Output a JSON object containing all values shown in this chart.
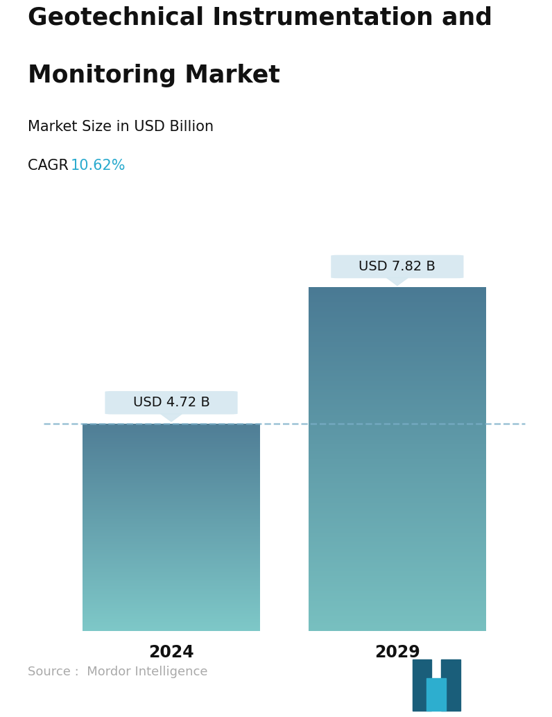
{
  "title_line1": "Geotechnical Instrumentation and",
  "title_line2": "Monitoring Market",
  "subtitle": "Market Size in USD Billion",
  "cagr_label": "CAGR  ",
  "cagr_value": "10.62%",
  "cagr_color": "#29AACE",
  "categories": [
    "2024",
    "2029"
  ],
  "values": [
    4.72,
    7.82
  ],
  "labels": [
    "USD 4.72 B",
    "USD 7.82 B"
  ],
  "bar_top_colors": [
    "#507E96",
    "#4A7A94"
  ],
  "bar_bottom_colors": [
    "#7EC8C8",
    "#78C0C0"
  ],
  "dashed_line_color": "#7AAFC8",
  "callout_bg": "#D6E8F0",
  "source_text": "Source :  Mordor Intelligence",
  "source_color": "#AAAAAA",
  "background_color": "#FFFFFF",
  "title_fontsize": 25,
  "subtitle_fontsize": 15,
  "cagr_fontsize": 15,
  "label_fontsize": 14,
  "tick_fontsize": 17,
  "source_fontsize": 13,
  "ylim": [
    0,
    9.8
  ],
  "bar_positions": [
    0.27,
    0.73
  ],
  "bar_width": 0.36
}
